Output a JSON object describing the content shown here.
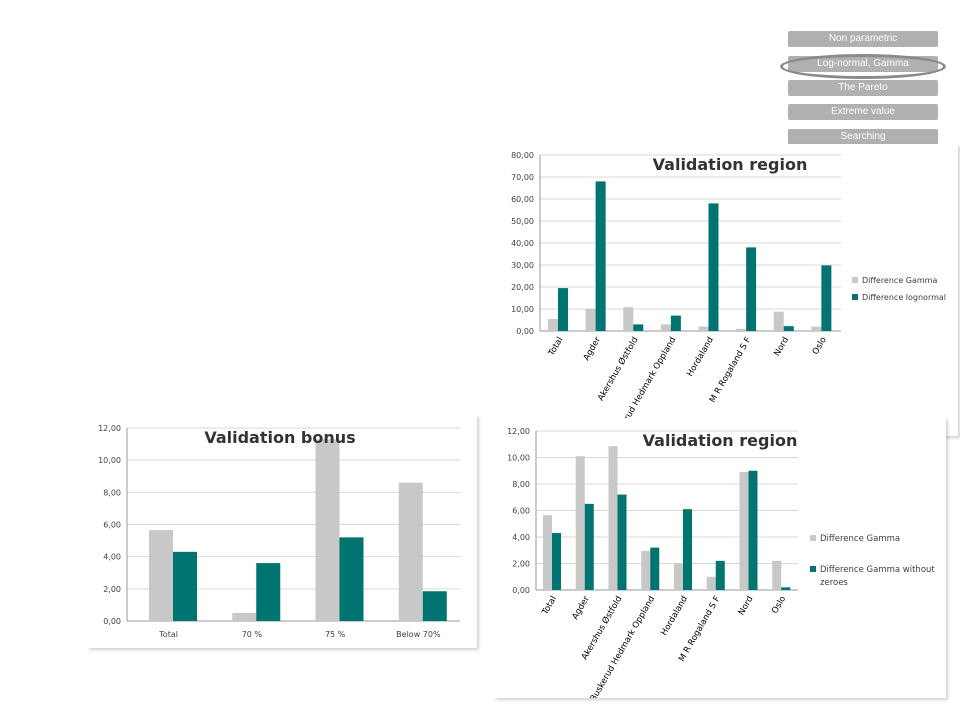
{
  "nav": {
    "buttons": [
      "Non parametric",
      "Log-normal, Gamma",
      "The Pareto",
      "Extreme value",
      "Searching"
    ],
    "active_index": 1
  },
  "colors": {
    "gray": "#c8c8c8",
    "teal": "#007470",
    "grid": "#d9d9d9",
    "axis": "#9a9a9a",
    "text": "#404040"
  },
  "chart_data": [
    {
      "type": "bar",
      "title": "Validation region",
      "categories": [
        "Total",
        "Agder",
        "Akershus Østfold",
        "Buskerud Hedmark Oppland",
        "Hordaland",
        "M R Rogaland S F",
        "Nord",
        "Oslo"
      ],
      "series": [
        {
          "name": "Difference Gamma",
          "values": [
            5.5,
            10,
            10.8,
            3,
            2,
            1,
            8.8,
            2
          ]
        },
        {
          "name": "Difference lognormal",
          "values": [
            19.5,
            68,
            3,
            7,
            58,
            38,
            2.2,
            29.8
          ]
        }
      ],
      "ylim": [
        0,
        80
      ],
      "yticks": [
        "0,00",
        "10,00",
        "20,00",
        "30,00",
        "40,00",
        "50,00",
        "60,00",
        "70,00",
        "80,00"
      ],
      "legend": "right"
    },
    {
      "type": "bar",
      "title": "Validation bonus",
      "categories": [
        "Total",
        "70 %",
        "75 %",
        "Below 70%"
      ],
      "series": [
        {
          "values": [
            5.65,
            0.5,
            11.3,
            8.6
          ]
        },
        {
          "values": [
            4.3,
            3.6,
            5.2,
            1.85
          ]
        }
      ],
      "ylim": [
        0,
        12
      ],
      "yticks": [
        "0,00",
        "2,00",
        "4,00",
        "6,00",
        "8,00",
        "10,00",
        "12,00"
      ]
    },
    {
      "type": "bar",
      "title": "Validation region",
      "categories": [
        "Total",
        "Agder",
        "Akershus Østfold",
        "Buskerud Hedmark Oppland",
        "Hordaland",
        "M R Rogaland S F",
        "Nord",
        "Oslo"
      ],
      "series": [
        {
          "name": "Difference Gamma",
          "values": [
            5.65,
            10.1,
            10.85,
            2.95,
            2,
            1,
            8.9,
            2.2
          ]
        },
        {
          "name": "Difference Gamma without zeroes",
          "values": [
            4.3,
            6.5,
            7.2,
            3.2,
            6.1,
            2.2,
            9,
            0.2
          ]
        }
      ],
      "ylim": [
        0,
        12
      ],
      "yticks": [
        "0,00",
        "2,00",
        "4,00",
        "6,00",
        "8,00",
        "10,00",
        "12,00"
      ],
      "legend": "right"
    }
  ]
}
